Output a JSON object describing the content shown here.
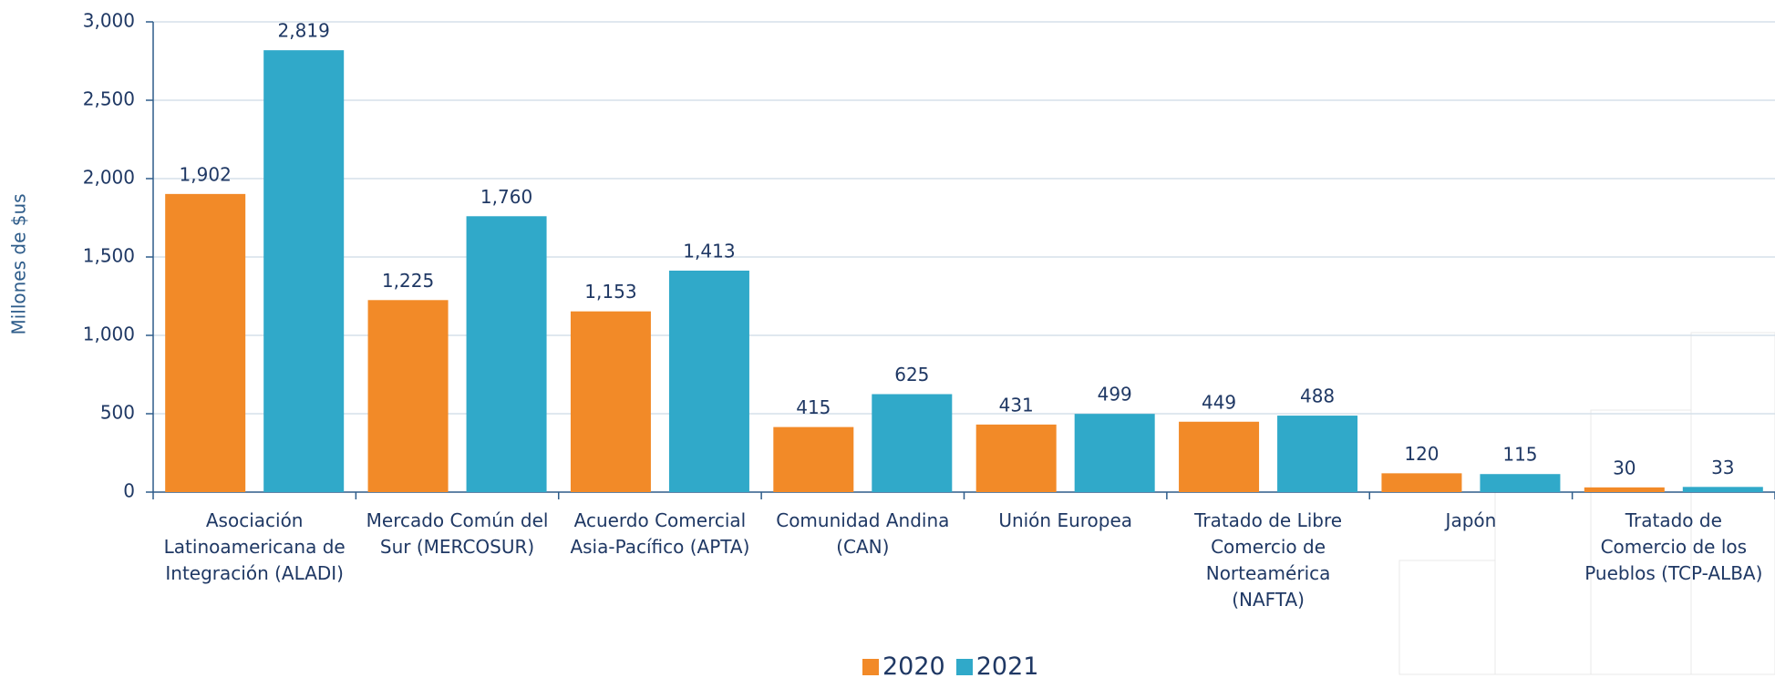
{
  "chart_data": {
    "type": "bar",
    "y_label": "Millones de $us",
    "categories": [
      "Asociación Latinoamericana de Integración (ALADI)",
      "Mercado Común del Sur (MERCOSUR)",
      "Acuerdo Comercial Asia-Pacífico  (APTA)",
      "Comunidad Andina (CAN)",
      "Unión Europea",
      "Tratado de Libre Comercio de Norteamérica (NAFTA)",
      "Japón",
      "Tratado de Comercio de los Pueblos (TCP-ALBA)"
    ],
    "series": [
      {
        "name": "2020",
        "color": "#f28a28",
        "values": [
          1902,
          1225,
          1153,
          415,
          431,
          449,
          120,
          30
        ],
        "value_labels": [
          "1,902",
          "1,225",
          "1,153",
          "415",
          "431",
          "449",
          "120",
          "30"
        ]
      },
      {
        "name": "2021",
        "color": "#30a9c9",
        "values": [
          2819,
          1760,
          1413,
          625,
          499,
          488,
          115,
          33
        ],
        "value_labels": [
          "2,819",
          "1,760",
          "1,413",
          "625",
          "499",
          "488",
          "115",
          "33"
        ]
      }
    ],
    "ylim": [
      0,
      3000
    ],
    "yticks": [
      0,
      500,
      {
        "value": 1000,
        "label": "1,000"
      },
      {
        "value": 1500,
        "label": "1,500"
      },
      {
        "value": 2000,
        "label": "2,000"
      },
      {
        "value": 2500,
        "label": "2,500"
      },
      {
        "value": 3000,
        "label": "3,000"
      }
    ],
    "grid": true
  }
}
